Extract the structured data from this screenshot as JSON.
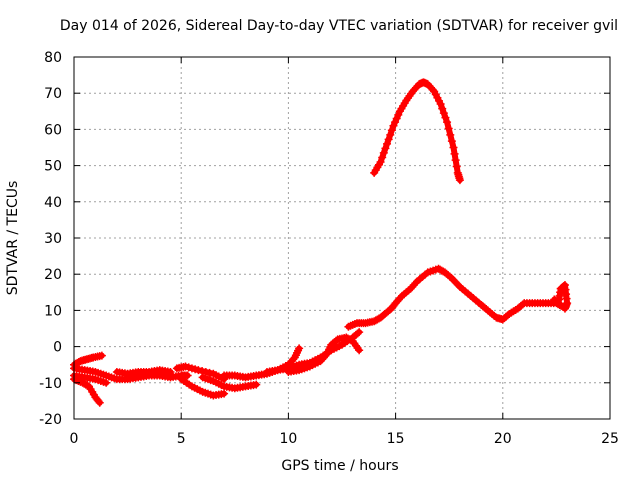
{
  "chart_data": {
    "type": "scatter",
    "title": "Day 014 of 2026, Sidereal Day-to-day VTEC variation (SDTVAR) for receiver gvil",
    "xlabel": "GPS time / hours",
    "ylabel": "SDTVAR / TECUs",
    "xlim": [
      0,
      25
    ],
    "ylim": [
      -20,
      80
    ],
    "xticks": [
      0,
      5,
      10,
      15,
      20,
      25
    ],
    "yticks": [
      -20,
      -10,
      0,
      10,
      20,
      30,
      40,
      50,
      60,
      70,
      80
    ],
    "grid": true,
    "marker": "plus",
    "series": [
      {
        "name": "SDTVAR",
        "color": "#ff0000",
        "tracks": [
          [
            [
              0.0,
              -5
            ],
            [
              0.3,
              -4
            ],
            [
              0.6,
              -3.5
            ],
            [
              0.9,
              -3
            ],
            [
              1.3,
              -2.5
            ]
          ],
          [
            [
              0.0,
              -6
            ],
            [
              0.5,
              -6.5
            ],
            [
              1.0,
              -7
            ],
            [
              1.5,
              -8
            ],
            [
              2.0,
              -9
            ],
            [
              2.5,
              -9
            ],
            [
              3.0,
              -8.5
            ],
            [
              3.5,
              -8
            ],
            [
              4.0,
              -8
            ],
            [
              4.5,
              -8.5
            ],
            [
              5.0,
              -8
            ],
            [
              5.3,
              -8
            ]
          ],
          [
            [
              0.0,
              -9
            ],
            [
              0.4,
              -10
            ],
            [
              0.7,
              -11
            ],
            [
              1.0,
              -14
            ],
            [
              1.2,
              -15.5
            ]
          ],
          [
            [
              0.0,
              -8
            ],
            [
              0.5,
              -8.5
            ],
            [
              1.0,
              -9
            ],
            [
              1.5,
              -10
            ]
          ],
          [
            [
              2.0,
              -7
            ],
            [
              2.5,
              -7.5
            ],
            [
              3.0,
              -7
            ],
            [
              3.5,
              -7
            ],
            [
              4.0,
              -6.5
            ],
            [
              4.5,
              -7
            ]
          ],
          [
            [
              4.8,
              -6
            ],
            [
              5.2,
              -5.5
            ],
            [
              5.8,
              -6.5
            ],
            [
              6.5,
              -7.5
            ],
            [
              7.0,
              -9
            ]
          ],
          [
            [
              5.0,
              -9
            ],
            [
              5.5,
              -11
            ],
            [
              6.0,
              -12.5
            ],
            [
              6.5,
              -13.5
            ],
            [
              7.0,
              -13
            ]
          ],
          [
            [
              6.0,
              -8.5
            ],
            [
              6.5,
              -9.5
            ],
            [
              7.0,
              -11
            ],
            [
              7.5,
              -11.5
            ],
            [
              8.0,
              -11
            ],
            [
              8.5,
              -10.5
            ]
          ],
          [
            [
              7.0,
              -8
            ],
            [
              7.5,
              -8
            ],
            [
              8.0,
              -8.5
            ],
            [
              8.5,
              -8
            ],
            [
              9.0,
              -7.5
            ],
            [
              9.5,
              -6.5
            ],
            [
              10.0,
              -5
            ],
            [
              10.3,
              -3
            ],
            [
              10.5,
              -0.5
            ]
          ],
          [
            [
              9.0,
              -7
            ],
            [
              9.5,
              -6.5
            ],
            [
              10.0,
              -6
            ],
            [
              10.5,
              -5
            ],
            [
              11.0,
              -4.5
            ],
            [
              11.5,
              -3
            ],
            [
              12.0,
              -1
            ],
            [
              12.5,
              0.5
            ],
            [
              13.0,
              2.5
            ],
            [
              13.3,
              4
            ]
          ],
          [
            [
              10.0,
              -7
            ],
            [
              10.5,
              -6.5
            ],
            [
              11.0,
              -5.5
            ],
            [
              11.5,
              -4
            ],
            [
              11.8,
              -2
            ],
            [
              12.0,
              0.5
            ],
            [
              12.3,
              2
            ],
            [
              12.7,
              2.5
            ],
            [
              13.0,
              1.5
            ],
            [
              13.3,
              -1
            ]
          ],
          [
            [
              12.8,
              5.5
            ],
            [
              13.2,
              6.5
            ],
            [
              13.6,
              6.5
            ],
            [
              14.0,
              7
            ],
            [
              14.3,
              8
            ],
            [
              14.5,
              9
            ],
            [
              14.8,
              10.5
            ],
            [
              15.0,
              12
            ],
            [
              15.3,
              14
            ],
            [
              15.7,
              16
            ],
            [
              16.0,
              18
            ],
            [
              16.5,
              20.5
            ],
            [
              17.0,
              21.5
            ],
            [
              17.3,
              20.5
            ],
            [
              17.6,
              19
            ],
            [
              18.0,
              16.5
            ],
            [
              18.5,
              14
            ],
            [
              19.0,
              11.5
            ],
            [
              19.3,
              10
            ],
            [
              19.7,
              8
            ],
            [
              20.0,
              7.5
            ],
            [
              20.3,
              9
            ],
            [
              20.7,
              10.5
            ],
            [
              21.0,
              12
            ],
            [
              21.5,
              12
            ],
            [
              22.0,
              12
            ],
            [
              22.5,
              12
            ],
            [
              22.8,
              11
            ]
          ],
          [
            [
              14.0,
              48
            ],
            [
              14.3,
              51
            ],
            [
              14.6,
              56
            ],
            [
              14.9,
              61
            ],
            [
              15.2,
              65
            ],
            [
              15.5,
              68
            ],
            [
              15.8,
              70.5
            ],
            [
              16.1,
              72.5
            ],
            [
              16.3,
              73
            ],
            [
              16.5,
              72.5
            ],
            [
              16.8,
              70.5
            ],
            [
              17.1,
              67
            ],
            [
              17.4,
              62
            ],
            [
              17.7,
              55
            ],
            [
              17.9,
              48
            ],
            [
              18.0,
              46
            ]
          ],
          [
            [
              22.4,
              13
            ],
            [
              22.6,
              12
            ],
            [
              22.7,
              16
            ],
            [
              22.9,
              17
            ],
            [
              23.0,
              12
            ],
            [
              22.9,
              10.5
            ]
          ]
        ]
      }
    ]
  }
}
